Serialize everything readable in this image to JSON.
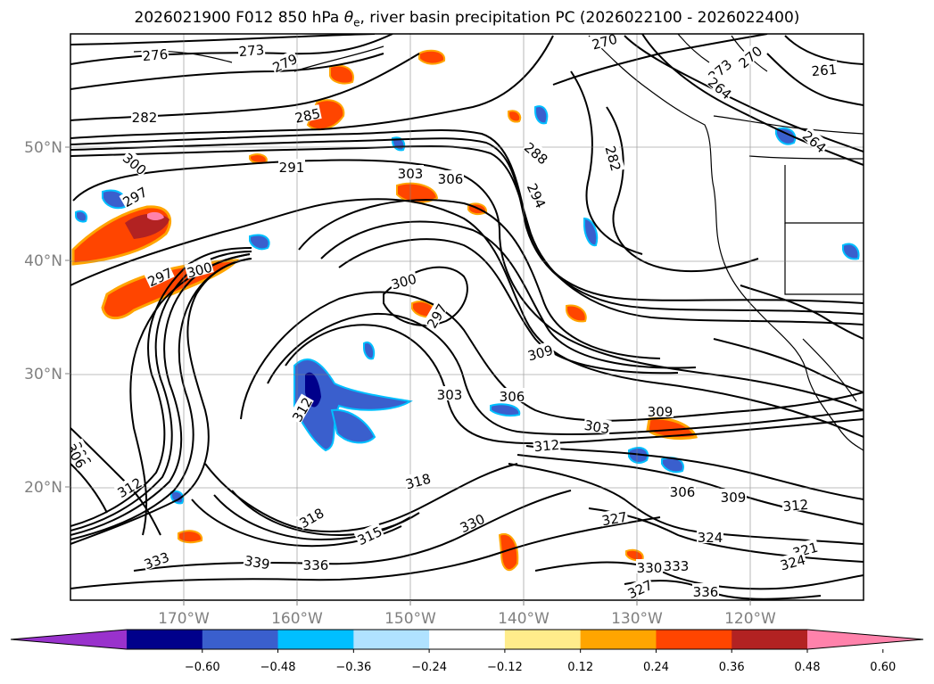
{
  "title": {
    "prefix": "2026021900 F012 850 hPa ",
    "theta_symbol": "θ",
    "theta_sub": "e",
    "suffix": ", river basin precipitation PC (2026022100 - 2026022400)"
  },
  "map": {
    "projection": "lat-lon",
    "lat_ticks": [
      {
        "value": 50,
        "label": "50°N"
      },
      {
        "value": 40,
        "label": "40°N"
      },
      {
        "value": 30,
        "label": "30°N"
      },
      {
        "value": 20,
        "label": "20°N"
      }
    ],
    "lon_ticks": [
      {
        "value": -170,
        "label": "170°W"
      },
      {
        "value": -160,
        "label": "160°W"
      },
      {
        "value": -150,
        "label": "150°W"
      },
      {
        "value": -140,
        "label": "140°W"
      },
      {
        "value": -130,
        "label": "130°W"
      },
      {
        "value": -120,
        "label": "120°W"
      }
    ],
    "contour_labels": [
      "276",
      "273",
      "279",
      "270",
      "273",
      "270",
      "261",
      "264",
      "282",
      "285",
      "288",
      "282",
      "300",
      "291",
      "303",
      "306",
      "294",
      "264",
      "297",
      "297",
      "300",
      "297",
      "300",
      "309",
      "303",
      "306",
      "309",
      "303",
      "312",
      "306",
      "318",
      "315",
      "306",
      "312",
      "309",
      "306",
      "312",
      "330",
      "327",
      "324",
      "333",
      "339",
      "336",
      "321",
      "324",
      "330",
      "333",
      "336",
      "327",
      "318",
      "312"
    ]
  },
  "colorbar": {
    "ticks": [
      "−0.60",
      "−0.48",
      "−0.36",
      "−0.24",
      "−0.12",
      "0.12",
      "0.24",
      "0.36",
      "0.48",
      "0.60"
    ],
    "colors": [
      "#9932CC",
      "#00008B",
      "#3A5FCD",
      "#00BFFF",
      "#B0E2FF",
      "#FFFFFF",
      "#FFEC8B",
      "#FFA500",
      "#FF4500",
      "#B22222",
      "#FF82AB"
    ]
  }
}
